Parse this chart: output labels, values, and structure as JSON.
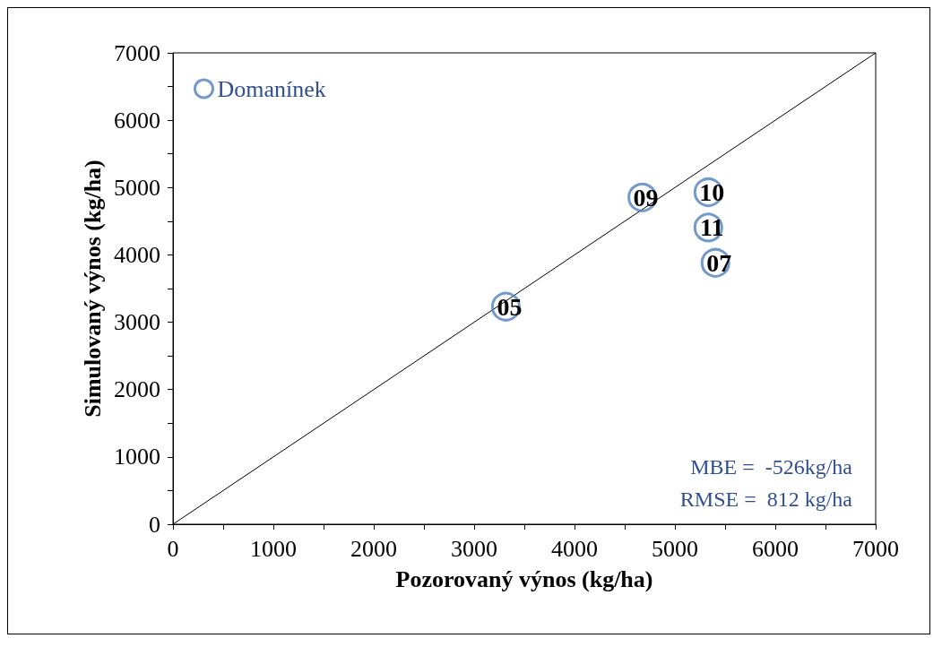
{
  "chart_data": {
    "type": "scatter",
    "xlabel": "Pozorovaný výnos (kg/ha)",
    "ylabel": "Simulovaný výnos (kg/ha)",
    "x": [
      3316,
      4675,
      5333,
      5333,
      5404
    ],
    "series": [
      {
        "name": "Domanínek",
        "color": "#4f81bd",
        "values": [
          3231,
          4853,
          4930,
          4406,
          3882
        ]
      },
      {
        "type": "line",
        "color": "#000000",
        "x": [
          0,
          7000
        ],
        "values": [
          0,
          7000
        ],
        "marker": "none"
      }
    ],
    "xlim": [
      0,
      7000
    ],
    "ylim": [
      0,
      7000
    ],
    "xticks": [
      0,
      {
        "value": 500,
        "label": null
      },
      1000,
      {
        "value": 1500,
        "label": null
      },
      2000,
      {
        "value": 2500,
        "label": null
      },
      3000,
      {
        "value": 3500,
        "label": null
      },
      4000,
      {
        "value": 4500,
        "label": null
      },
      5000,
      {
        "value": 5500,
        "label": null
      },
      6000,
      {
        "value": 6500,
        "label": null
      },
      7000
    ],
    "yticks": [
      0,
      {
        "value": 500,
        "label": null
      },
      1000,
      {
        "value": 1500,
        "label": null
      },
      2000,
      {
        "value": 2500,
        "label": null
      },
      3000,
      {
        "value": 3500,
        "label": null
      },
      4000,
      {
        "value": 4500,
        "label": null
      },
      5000,
      {
        "value": 5500,
        "label": null
      },
      6000,
      {
        "value": 6500,
        "label": null
      },
      7000
    ],
    "annotations": [
      {
        "text": "05",
        "x": 3316,
        "y": 3231
      },
      {
        "text": "09",
        "x": 4675,
        "y": 4853
      },
      {
        "text": "10",
        "x": 5333,
        "y": 4930
      },
      {
        "text": "11",
        "x": 5333,
        "y": 4406
      },
      {
        "text": "07",
        "x": 5404,
        "y": 3882
      },
      "MBE =  -526kg/ha",
      "RMSE =  812 kg/ha"
    ],
    "grid": false,
    "legend": "top left",
    "marker": "circle"
  }
}
